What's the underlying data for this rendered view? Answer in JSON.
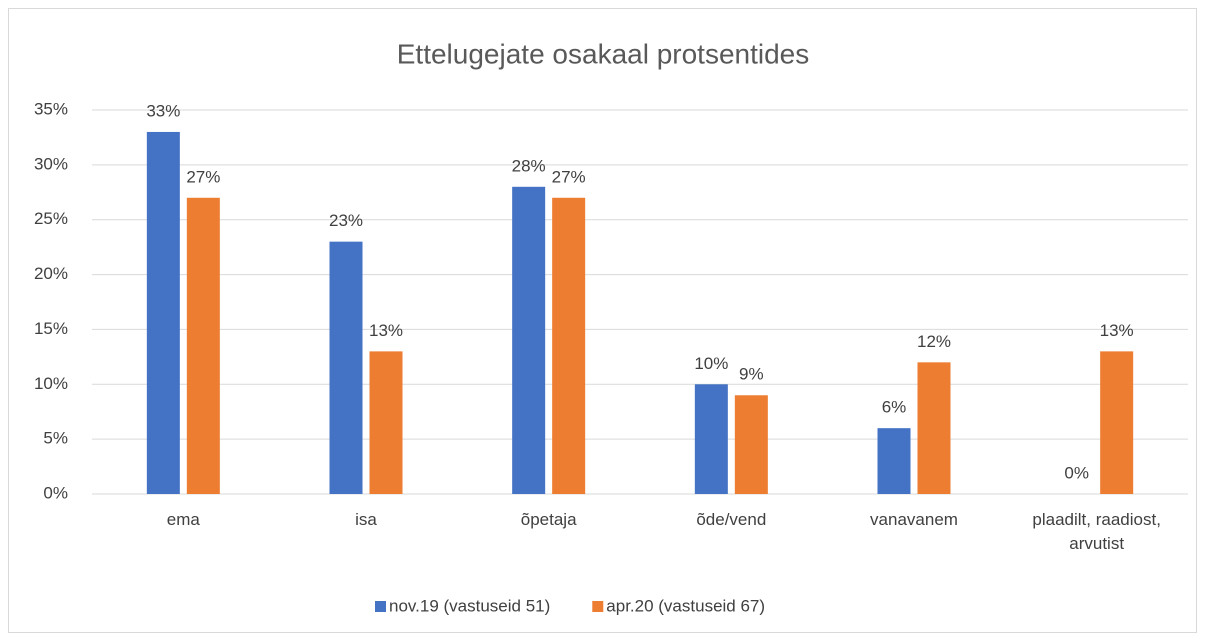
{
  "chart_data": {
    "type": "bar",
    "title": "Ettelugejate osakaal protsentides",
    "categories": [
      "ema",
      "isa",
      "õpetaja",
      "õde/vend",
      "vanavanem",
      "plaadilt, raadiost, arvutist"
    ],
    "series": [
      {
        "name": "nov.19 (vastuseid 51)",
        "color": "#4472c4",
        "values": [
          33,
          23,
          28,
          10,
          6,
          0
        ],
        "value_labels": [
          "33%",
          "23%",
          "28%",
          "10%",
          "6%",
          "0%"
        ]
      },
      {
        "name": "apr.20 (vastuseid 67)",
        "color": "#ed7d31",
        "values": [
          27,
          13,
          27,
          9,
          12,
          13
        ],
        "value_labels": [
          "27%",
          "13%",
          "27%",
          "9%",
          "12%",
          "13%"
        ]
      }
    ],
    "ylim": [
      0,
      35
    ],
    "yticks": [
      {
        "value": 0,
        "label": "0%"
      },
      {
        "value": 5,
        "label": "5%"
      },
      {
        "value": 10,
        "label": "10%"
      },
      {
        "value": 15,
        "label": "15%"
      },
      {
        "value": 20,
        "label": "20%"
      },
      {
        "value": 25,
        "label": "25%"
      },
      {
        "value": 30,
        "label": "30%"
      },
      {
        "value": 35,
        "label": "35%"
      }
    ],
    "grid": true,
    "legend": "bottom"
  }
}
